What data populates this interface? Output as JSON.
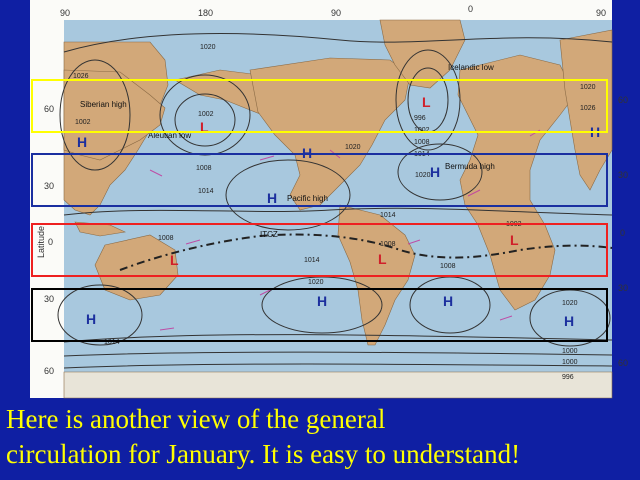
{
  "slide": {
    "caption_line1": "Here is another view of the general",
    "caption_line2": "circulation for January. It is easy to understand!"
  },
  "map": {
    "top_ticks": [
      "90",
      "180",
      "90",
      "0",
      "90"
    ],
    "left_ticks": [
      "60",
      "30",
      "0",
      "30",
      "60"
    ],
    "right_ticks": [
      "60",
      "30",
      "0",
      "30",
      "60"
    ],
    "latitude_label": "Latitude",
    "region_labels": {
      "siberian": "Siberian high",
      "aleutian": "Aleutian low",
      "icelandic": "Icelandic low",
      "pacific": "Pacific high",
      "bermuda": "Bermuda high",
      "itcz": "ITCZ"
    },
    "isobars": [
      "1020",
      "1026",
      "1002",
      "1008",
      "1014",
      "1020",
      "1002",
      "996",
      "1002",
      "1008",
      "1014",
      "1020",
      "1026",
      "1014",
      "1020",
      "1008",
      "1002",
      "1008",
      "1014",
      "1008",
      "1014",
      "1020",
      "1020",
      "1014",
      "1000",
      "1000",
      "996"
    ],
    "pressure_centers": [
      {
        "symbol": "H",
        "type": "high"
      },
      {
        "symbol": "L",
        "type": "low"
      },
      {
        "symbol": "H",
        "type": "high"
      },
      {
        "symbol": "L",
        "type": "low"
      },
      {
        "symbol": "H",
        "type": "high"
      },
      {
        "symbol": "H",
        "type": "high"
      },
      {
        "symbol": "H",
        "type": "high"
      },
      {
        "symbol": "L",
        "type": "low"
      },
      {
        "symbol": "L",
        "type": "low"
      },
      {
        "symbol": "L",
        "type": "low"
      },
      {
        "symbol": "H",
        "type": "high"
      },
      {
        "symbol": "H",
        "type": "high"
      },
      {
        "symbol": "H",
        "type": "high"
      },
      {
        "symbol": "H",
        "type": "high"
      }
    ]
  },
  "highlight_bands": [
    {
      "name": "polar-band",
      "color": "#ffff00"
    },
    {
      "name": "subtropical-band-north",
      "color": "#1a2fa0"
    },
    {
      "name": "equatorial-band",
      "color": "#ee2020"
    },
    {
      "name": "subtropical-band-south",
      "color": "#000000"
    }
  ],
  "colors": {
    "ocean": "#a8c8de",
    "land": "#d2a879",
    "background": "#0f1fa3",
    "caption": "#ffff00",
    "high": "#1c2f9e",
    "low": "#d0202a"
  }
}
